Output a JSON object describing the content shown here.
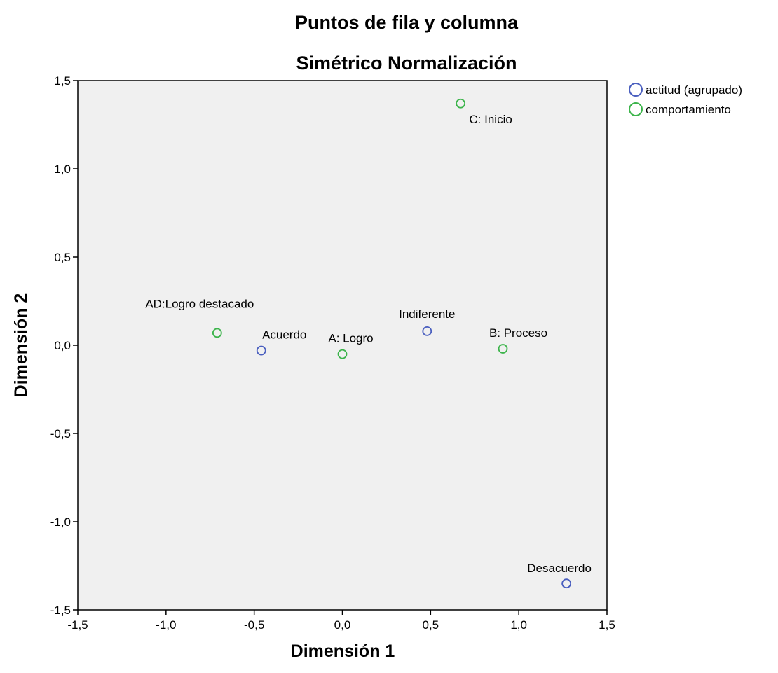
{
  "chart_data": {
    "type": "scatter",
    "title": "Puntos de fila y columna",
    "subtitle": "Simétrico Normalización",
    "xlabel": "Dimensión 1",
    "ylabel": "Dimensión 2",
    "xlim": [
      -1.5,
      1.5
    ],
    "ylim": [
      -1.5,
      1.5
    ],
    "xticks": [
      -1.5,
      -1.0,
      -0.5,
      0.0,
      0.5,
      1.0,
      1.5
    ],
    "yticks": [
      -1.5,
      -1.0,
      -0.5,
      0.0,
      0.5,
      1.0,
      1.5
    ],
    "xtick_labels": [
      "-1,5",
      "-1,0",
      "-0,5",
      "0,0",
      "0,5",
      "1,0",
      "1,5"
    ],
    "ytick_labels": [
      "-1,5",
      "-1,0",
      "-0,5",
      "0,0",
      "0,5",
      "1,0",
      "1,5"
    ],
    "grid": false,
    "plot_background": "#f0f0f0",
    "legend_position": "top-right outside",
    "series": [
      {
        "name": "actitud (agrupado)",
        "color": "#4a5fbf",
        "points": [
          {
            "label": "Acuerdo",
            "x": -0.46,
            "y": -0.03
          },
          {
            "label": "Indiferente",
            "x": 0.48,
            "y": 0.08
          },
          {
            "label": "Desacuerdo",
            "x": 1.27,
            "y": -1.35
          }
        ]
      },
      {
        "name": "comportamiento",
        "color": "#3cb44b",
        "points": [
          {
            "label": "AD:Logro destacado",
            "x": -0.71,
            "y": 0.07
          },
          {
            "label": "A: Logro",
            "x": 0.0,
            "y": -0.05
          },
          {
            "label": "B: Proceso",
            "x": 0.91,
            "y": -0.02
          },
          {
            "label": "C: Inicio",
            "x": 0.67,
            "y": 1.37
          }
        ]
      }
    ]
  }
}
